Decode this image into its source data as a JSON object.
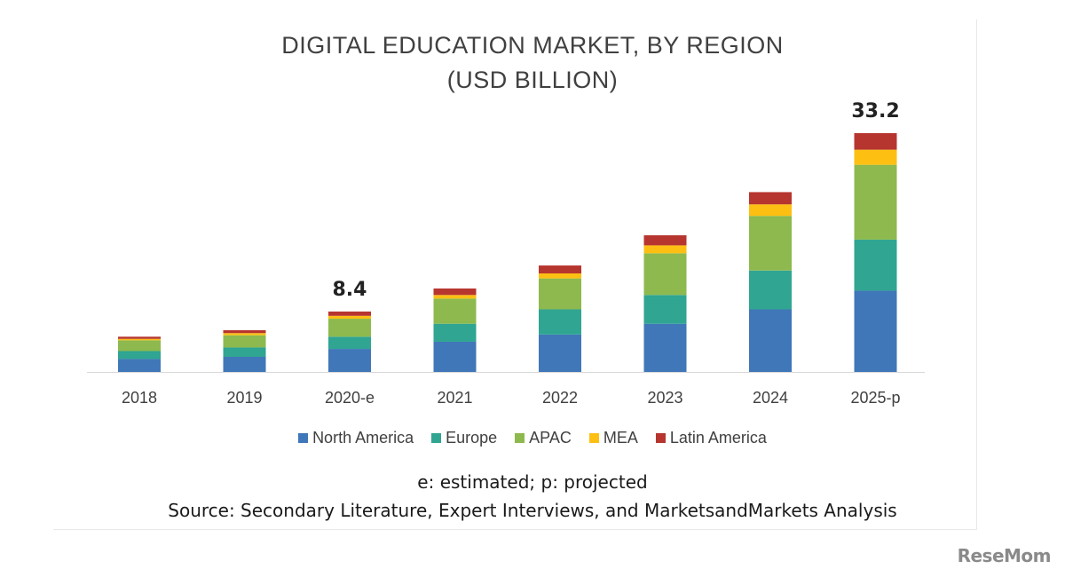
{
  "chart_data": {
    "type": "bar",
    "stacked": true,
    "title": "DIGITAL EDUCATION MARKET, BY REGION",
    "subtitle": "(USD BILLION)",
    "categories": [
      "2018",
      "2019",
      "2020-e",
      "2021",
      "2022",
      "2023",
      "2024",
      "2025-p"
    ],
    "series": [
      {
        "name": "North America",
        "color": "#3f77b8",
        "values": [
          1.8,
          2.1,
          3.2,
          4.2,
          5.2,
          6.7,
          8.7,
          11.3
        ]
      },
      {
        "name": "Europe",
        "color": "#2fa592",
        "values": [
          1.1,
          1.3,
          1.7,
          2.5,
          3.5,
          4.0,
          5.4,
          7.1
        ]
      },
      {
        "name": "APAC",
        "color": "#8db94e",
        "values": [
          1.5,
          1.7,
          2.5,
          3.5,
          4.3,
          5.8,
          7.6,
          10.4
        ]
      },
      {
        "name": "MEA",
        "color": "#fdbf12",
        "values": [
          0.2,
          0.3,
          0.4,
          0.5,
          0.7,
          1.1,
          1.6,
          2.1
        ]
      },
      {
        "name": "Latin America",
        "color": "#b7352f",
        "values": [
          0.3,
          0.4,
          0.6,
          0.9,
          1.1,
          1.4,
          1.7,
          2.3
        ]
      }
    ],
    "data_labels": [
      {
        "category": "2020-e",
        "text": "8.4"
      },
      {
        "category": "2025-p",
        "text": "33.2"
      }
    ],
    "ylim": [
      0,
      33.2
    ],
    "grid": false,
    "legend_position": "bottom"
  },
  "footnote": "e: estimated; p: projected",
  "source": "Source: Secondary Literature, Expert Interviews, and MarketsandMarkets Analysis",
  "watermark": "ReseMom"
}
